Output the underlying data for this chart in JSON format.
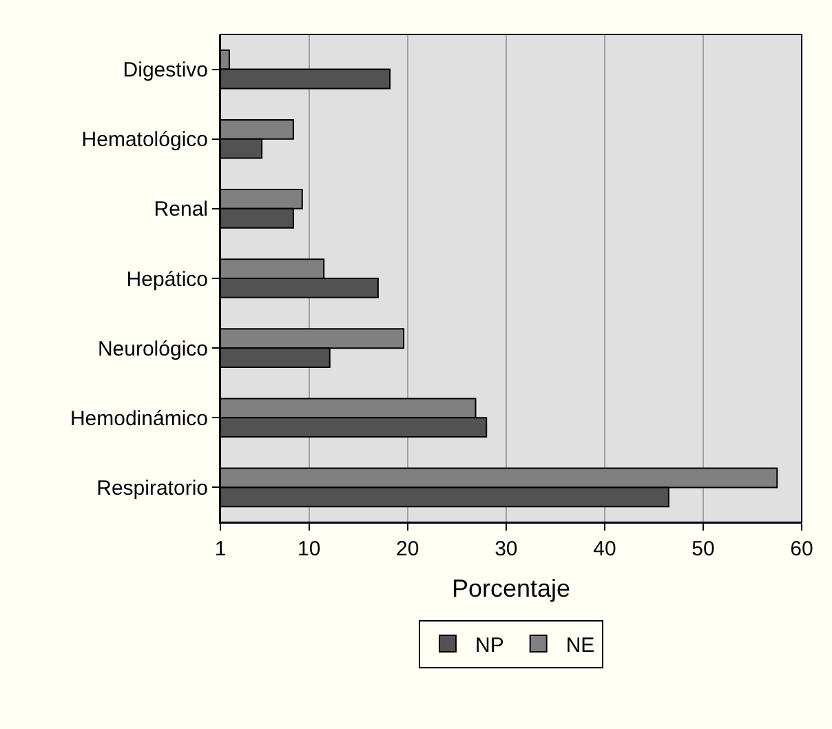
{
  "chart_data": {
    "type": "bar",
    "orientation": "horizontal",
    "xlabel": "Porcentaje",
    "categories": [
      "Digestivo",
      "Hematológico",
      "Renal",
      "Hepático",
      "Neurológico",
      "Hemodinámico",
      "Respiratorio"
    ],
    "series": [
      {
        "name": "NP",
        "color": "#525252",
        "values": [
          18.2,
          5.2,
          8.4,
          17,
          12.1,
          28,
          46.5
        ]
      },
      {
        "name": "NE",
        "color": "#808080",
        "values": [
          1.9,
          8.4,
          9.3,
          11.5,
          19.6,
          26.9,
          57.5
        ]
      }
    ],
    "xlim": [
      1,
      60
    ],
    "xticks": [
      1,
      10,
      20,
      30,
      40,
      50,
      60
    ],
    "grid": "x",
    "legend": "bottom"
  }
}
